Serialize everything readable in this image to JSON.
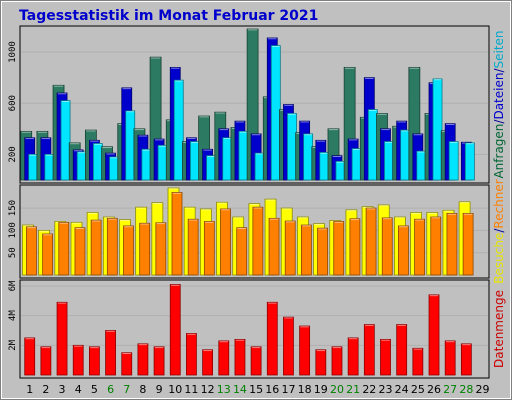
{
  "chart_data": {
    "type": "bar",
    "title": "Tagesstatistik im Monat Februar 2021",
    "categories": [
      "1",
      "2",
      "3",
      "4",
      "5",
      "6",
      "7",
      "8",
      "9",
      "10",
      "11",
      "12",
      "13",
      "14",
      "15",
      "16",
      "17",
      "18",
      "19",
      "20",
      "21",
      "22",
      "23",
      "24",
      "25",
      "26",
      "27",
      "28",
      "29"
    ],
    "weekend_days": [
      "6",
      "7",
      "13",
      "14",
      "20",
      "21",
      "27",
      "28"
    ],
    "panels": [
      {
        "name": "top",
        "y_ticks": [
          {
            "label": "1000",
            "value": 1000
          },
          {
            "label": "600",
            "value": 600
          },
          {
            "label": "200",
            "value": 200
          }
        ],
        "ylim": [
          0,
          1180
        ],
        "ylabel": [
          {
            "text": "Anfragen",
            "color": "#006633"
          },
          {
            "text": "/",
            "color": "#000099"
          },
          {
            "text": "Dateien",
            "color": "#0000cc"
          },
          {
            "text": "/",
            "color": "#000099"
          },
          {
            "text": "Seiten",
            "color": "#00aacc"
          }
        ],
        "series": [
          {
            "name": "Anfragen",
            "color": "#2d7a62",
            "values": [
              380,
              380,
              740,
              290,
              390,
              260,
              440,
              400,
              960,
              470,
              300,
              500,
              530,
              410,
              1180,
              650,
              550,
              370,
              260,
              400,
              880,
              490,
              520,
              420,
              880,
              520,
              385,
              null,
              null
            ]
          },
          {
            "name": "Dateien",
            "color": "#0000cc",
            "values": [
              330,
              330,
              680,
              235,
              310,
              210,
              720,
              350,
              320,
              880,
              330,
              240,
              400,
              460,
              360,
              1110,
              590,
              460,
              310,
              190,
              320,
              800,
              400,
              460,
              360,
              760,
              440,
              295,
              null
            ]
          },
          {
            "name": "Seiten",
            "color": "#00e5ff",
            "values": [
              200,
              200,
              620,
              220,
              285,
              180,
              540,
              240,
              270,
              780,
              300,
              190,
              330,
              380,
              210,
              1050,
              520,
              360,
              215,
              145,
              245,
              550,
              300,
              390,
              225,
              790,
              300,
              290,
              null
            ]
          }
        ]
      },
      {
        "name": "middle",
        "y_ticks": [
          {
            "label": "150",
            "value": 150
          },
          {
            "label": "100",
            "value": 100
          },
          {
            "label": "50",
            "value": 50
          }
        ],
        "ylim": [
          0,
          195
        ],
        "ylabel": [
          {
            "text": "Besuche",
            "color": "#e6e600"
          },
          {
            "text": "/",
            "color": "#000099"
          },
          {
            "text": "Rechner",
            "color": "#ff8000"
          }
        ],
        "series": [
          {
            "name": "Besuche",
            "color": "#ffff00",
            "values": [
              112,
              100,
              120,
              118,
              140,
              130,
              124,
              152,
              162,
              195,
              152,
              148,
              163,
              130,
              160,
              170,
              150,
              130,
              115,
              122,
              146,
              153,
              157,
              130,
              140,
              140,
              145,
              164,
              null
            ]
          },
          {
            "name": "Rechner",
            "color": "#ff8000",
            "values": [
              108,
              92,
              118,
              106,
              123,
              127,
              110,
              116,
              117,
              185,
              125,
              120,
              148,
              106,
              152,
              127,
              121,
              112,
              105,
              120,
              126,
              150,
              128,
              110,
              125,
              130,
              138,
              138,
              null
            ]
          }
        ]
      },
      {
        "name": "bottom",
        "y_ticks": [
          {
            "label": "6M",
            "value": 6
          },
          {
            "label": "4M",
            "value": 4
          },
          {
            "label": "2M",
            "value": 2
          }
        ],
        "ylim": [
          0,
          6.2
        ],
        "ylabel": [
          {
            "text": "Datenmenge",
            "color": "#cc0000"
          }
        ],
        "series": [
          {
            "name": "Datenmenge",
            "color": "#ff0000",
            "values": [
              2.5,
              1.9,
              4.9,
              2.0,
              1.9,
              3.0,
              1.5,
              2.1,
              1.9,
              6.1,
              2.8,
              1.7,
              2.3,
              2.4,
              1.9,
              4.9,
              3.9,
              3.3,
              1.7,
              1.9,
              2.5,
              3.4,
              2.4,
              3.4,
              1.8,
              5.4,
              2.3,
              2.1,
              null
            ]
          }
        ]
      }
    ],
    "colors": {
      "background": "#c0c0c0",
      "frame": "#808080",
      "title": "#0000cc",
      "weekday_label": "#000000",
      "weekend_label": "#008000"
    }
  }
}
